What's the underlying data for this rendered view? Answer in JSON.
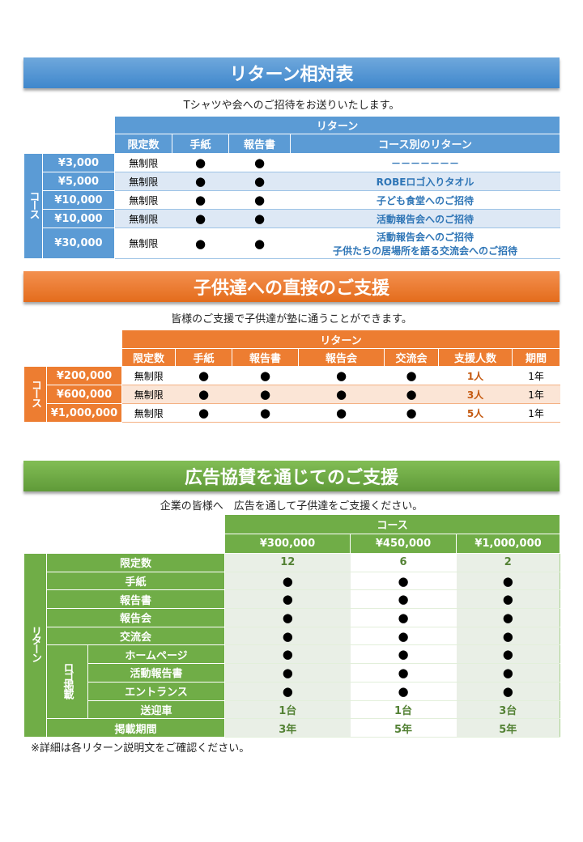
{
  "section1": {
    "title": "リターン相対表",
    "subtitle": "Tシャツや会へのご招待をお送りいたします。",
    "group_header": "リターン",
    "side_label": "コース",
    "columns": [
      "限定数",
      "手紙",
      "報告書",
      "コース別のリターン"
    ],
    "rows": [
      {
        "price": "¥3,000",
        "limit": "無制限",
        "letter": "●",
        "report": "●",
        "return": "－－－－－－－"
      },
      {
        "price": "¥5,000",
        "limit": "無制限",
        "letter": "●",
        "report": "●",
        "return": "ROBEロゴ入りタオル"
      },
      {
        "price": "¥10,000",
        "limit": "無制限",
        "letter": "●",
        "report": "●",
        "return": "子ども食堂へのご招待"
      },
      {
        "price": "¥10,000",
        "limit": "無制限",
        "letter": "●",
        "report": "●",
        "return": "活動報告会へのご招待"
      },
      {
        "price": "¥30,000",
        "limit": "無制限",
        "letter": "●",
        "report": "●",
        "return": "活動報告会へのご招待",
        "return2": "子供たちの居場所を語る交流会へのご招待"
      }
    ],
    "color": "#5b9bd5"
  },
  "section2": {
    "title": "子供達への直接のご支援",
    "subtitle": "皆様のご支援で子供達が塾に通うことができます。",
    "group_header": "リターン",
    "side_label": "コース",
    "columns": [
      "限定数",
      "手紙",
      "報告書",
      "報告会",
      "交流会",
      "支援人数",
      "期間"
    ],
    "rows": [
      {
        "price": "¥200,000",
        "cells": [
          "無制限",
          "●",
          "●",
          "●",
          "●",
          "1人",
          "1年"
        ]
      },
      {
        "price": "¥600,000",
        "cells": [
          "無制限",
          "●",
          "●",
          "●",
          "●",
          "3人",
          "1年"
        ]
      },
      {
        "price": "¥1,000,000",
        "cells": [
          "無制限",
          "●",
          "●",
          "●",
          "●",
          "5人",
          "1年"
        ]
      }
    ],
    "color": "#ed7d31"
  },
  "section3": {
    "title": "広告協賛を通じてのご支援",
    "subtitle": "企業の皆様へ　広告を通して子供達をご支援ください。",
    "group_header": "コース",
    "side_label": "リターン",
    "logo_label": "ロゴ掲載",
    "prices": [
      "¥300,000",
      "¥450,000",
      "¥1,000,000"
    ],
    "rows": [
      {
        "label": "限定数",
        "values": [
          "12",
          "6",
          "2"
        ]
      },
      {
        "label": "手紙",
        "values": [
          "●",
          "●",
          "●"
        ]
      },
      {
        "label": "報告書",
        "values": [
          "●",
          "●",
          "●"
        ]
      },
      {
        "label": "報告会",
        "values": [
          "●",
          "●",
          "●"
        ]
      },
      {
        "label": "交流会",
        "values": [
          "●",
          "●",
          "●"
        ]
      },
      {
        "label": "ホームページ",
        "values": [
          "●",
          "●",
          "●"
        ],
        "logo": true
      },
      {
        "label": "活動報告書",
        "values": [
          "●",
          "●",
          "●"
        ],
        "logo": true
      },
      {
        "label": "エントランス",
        "values": [
          "●",
          "●",
          "●"
        ],
        "logo": true
      },
      {
        "label": "送迎車",
        "values": [
          "1台",
          "1台",
          "3台"
        ],
        "logo": true
      },
      {
        "label": "掲載期間",
        "values": [
          "3年",
          "5年",
          "5年"
        ]
      }
    ],
    "color": "#70ad47"
  },
  "footer_note": "※詳細は各リターン説明文をご確認ください。"
}
